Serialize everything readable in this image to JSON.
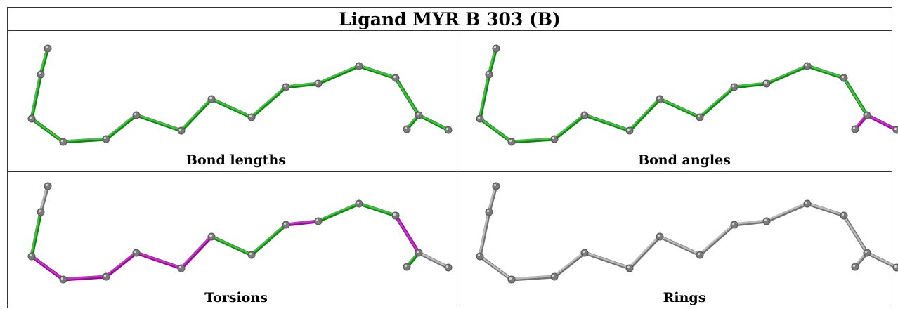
{
  "title": "Ligand MYR B 303 (B)",
  "panels": [
    {
      "caption": "Bond lengths",
      "bond_colors": [
        "green",
        "green",
        "green",
        "green",
        "green",
        "green",
        "green",
        "green",
        "green",
        "green",
        "green",
        "green",
        "green",
        "green",
        "green",
        "gray"
      ]
    },
    {
      "caption": "Bond angles",
      "bond_colors": [
        "green",
        "green",
        "green",
        "green",
        "green",
        "green",
        "green",
        "green",
        "green",
        "green",
        "green",
        "green",
        "green",
        "magenta",
        "magenta",
        "magenta"
      ]
    },
    {
      "caption": "Torsions",
      "bond_colors": [
        "gray",
        "green",
        "magenta",
        "magenta",
        "magenta",
        "magenta",
        "magenta",
        "green",
        "green",
        "magenta",
        "green",
        "green",
        "magenta",
        "green",
        "gray",
        "gray"
      ]
    },
    {
      "caption": "Rings",
      "bond_colors": [
        "gray",
        "gray",
        "gray",
        "gray",
        "gray",
        "gray",
        "gray",
        "gray",
        "gray",
        "gray",
        "gray",
        "gray",
        "gray",
        "gray",
        "gray",
        "gray"
      ]
    }
  ],
  "palette": {
    "green": "#3ac93a",
    "magenta": "#d62ad6",
    "gray": "#bdbdbd",
    "atom": "#7a7a7a",
    "atom_stroke": "#555555"
  }
}
